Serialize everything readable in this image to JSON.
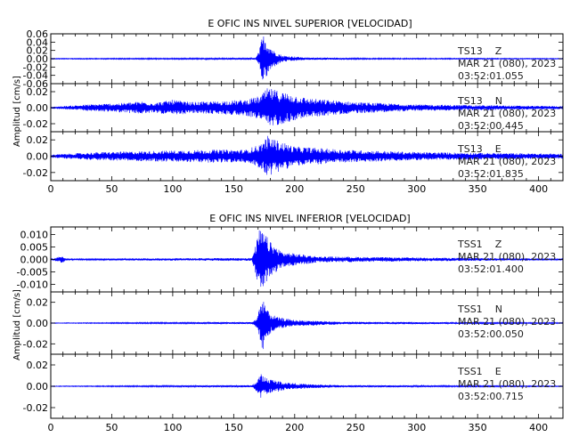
{
  "chart_data": [
    {
      "type": "line",
      "title": "E OFIC INS NIVEL SUPERIOR [VELOCIDAD]",
      "ylabel": "Amplitud [cm/s]",
      "xlim": [
        0,
        420
      ],
      "xticks": [
        "0",
        "50",
        "100",
        "150",
        "200",
        "250",
        "300",
        "350",
        "400"
      ],
      "line_color": "#0000ff",
      "traces": [
        {
          "station": "TS13",
          "component": "Z",
          "date": "MAR 21 (080), 2023",
          "time": "03:52:01.055",
          "ylim": [
            -0.06,
            0.06
          ],
          "yticks": [
            "0.06",
            "0.04",
            "0.02",
            "0.00",
            "-0.02",
            "-0.04",
            "-0.06"
          ],
          "ytick_values": [
            0.06,
            0.04,
            0.02,
            0.0,
            -0.02,
            -0.04,
            -0.06
          ],
          "envelope": [
            [
              0,
              0.001
            ],
            [
              168,
              0.002
            ],
            [
              171,
              0.02
            ],
            [
              173,
              0.05
            ],
            [
              175,
              0.06
            ],
            [
              178,
              0.04
            ],
            [
              183,
              0.02
            ],
            [
              190,
              0.008
            ],
            [
              210,
              0.003
            ],
            [
              260,
              0.0015
            ],
            [
              420,
              0.001
            ]
          ]
        },
        {
          "station": "TS13",
          "component": "N",
          "date": "MAR 21 (080), 2023",
          "time": "03:52:00.445",
          "ylim": [
            -0.03,
            0.03
          ],
          "yticks": [
            "0.02",
            "0.00",
            "-0.02"
          ],
          "ytick_values": [
            0.02,
            0.0,
            -0.02
          ],
          "envelope": [
            [
              0,
              0.001
            ],
            [
              30,
              0.004
            ],
            [
              60,
              0.006
            ],
            [
              75,
              0.008
            ],
            [
              85,
              0.006
            ],
            [
              100,
              0.01
            ],
            [
              115,
              0.007
            ],
            [
              135,
              0.008
            ],
            [
              160,
              0.01
            ],
            [
              172,
              0.015
            ],
            [
              178,
              0.025
            ],
            [
              190,
              0.02
            ],
            [
              210,
              0.012
            ],
            [
              250,
              0.007
            ],
            [
              300,
              0.004
            ],
            [
              420,
              0.002
            ]
          ]
        },
        {
          "station": "TS13",
          "component": "E",
          "date": "MAR 21 (080), 2023",
          "time": "03:52:01.835",
          "ylim": [
            -0.03,
            0.03
          ],
          "yticks": [
            "0.02",
            "0.00",
            "-0.02"
          ],
          "ytick_values": [
            0.02,
            0.0,
            -0.02
          ],
          "envelope": [
            [
              0,
              0.002
            ],
            [
              40,
              0.005
            ],
            [
              100,
              0.007
            ],
            [
              130,
              0.008
            ],
            [
              160,
              0.008
            ],
            [
              172,
              0.015
            ],
            [
              178,
              0.025
            ],
            [
              185,
              0.02
            ],
            [
              200,
              0.012
            ],
            [
              240,
              0.008
            ],
            [
              300,
              0.005
            ],
            [
              420,
              0.003
            ]
          ]
        }
      ]
    },
    {
      "type": "line",
      "title": "E OFIC INS NIVEL INFERIOR [VELOCIDAD]",
      "ylabel": "Amplitud [cm/s]",
      "xlim": [
        0,
        420
      ],
      "xticks": [
        "0",
        "50",
        "100",
        "150",
        "200",
        "250",
        "300",
        "350",
        "400"
      ],
      "line_color": "#0000ff",
      "traces": [
        {
          "station": "TSS1",
          "component": "Z",
          "date": "MAR 21 (080), 2023",
          "time": "03:52:01.400",
          "ylim": [
            -0.013,
            0.013
          ],
          "yticks": [
            "0.010",
            "0.005",
            "0.000",
            "-0.005",
            "-0.010"
          ],
          "ytick_values": [
            0.01,
            0.005,
            0.0,
            -0.005,
            -0.01
          ],
          "envelope": [
            [
              0,
              0.0002
            ],
            [
              10,
              0.0015
            ],
            [
              13,
              0.0003
            ],
            [
              165,
              0.0006
            ],
            [
              168,
              0.006
            ],
            [
              171,
              0.012
            ],
            [
              175,
              0.011
            ],
            [
              180,
              0.007
            ],
            [
              190,
              0.003
            ],
            [
              220,
              0.0012
            ],
            [
              290,
              0.0008
            ],
            [
              420,
              0.0003
            ]
          ]
        },
        {
          "station": "TSS1",
          "component": "N",
          "date": "MAR 21 (080), 2023",
          "time": "03:52:00.050",
          "ylim": [
            -0.03,
            0.03
          ],
          "yticks": [
            "0.02",
            "0.00",
            "-0.02"
          ],
          "ytick_values": [
            0.02,
            0.0,
            -0.02
          ],
          "envelope": [
            [
              0,
              0.0003
            ],
            [
              165,
              0.001
            ],
            [
              169,
              0.005
            ],
            [
              172,
              0.02
            ],
            [
              174,
              0.027
            ],
            [
              178,
              0.012
            ],
            [
              185,
              0.006
            ],
            [
              200,
              0.003
            ],
            [
              240,
              0.0012
            ],
            [
              420,
              0.0005
            ]
          ]
        },
        {
          "station": "TSS1",
          "component": "E",
          "date": "MAR 21 (080), 2023",
          "time": "03:52:00.715",
          "ylim": [
            -0.03,
            0.03
          ],
          "yticks": [
            "0.02",
            "0.00",
            "-0.02"
          ],
          "ytick_values": [
            0.02,
            0.0,
            -0.02
          ],
          "envelope": [
            [
              0,
              0.0003
            ],
            [
              165,
              0.001
            ],
            [
              169,
              0.005
            ],
            [
              172,
              0.012
            ],
            [
              175,
              0.009
            ],
            [
              180,
              0.007
            ],
            [
              190,
              0.004
            ],
            [
              210,
              0.002
            ],
            [
              240,
              0.001
            ],
            [
              420,
              0.0004
            ]
          ]
        }
      ]
    }
  ]
}
